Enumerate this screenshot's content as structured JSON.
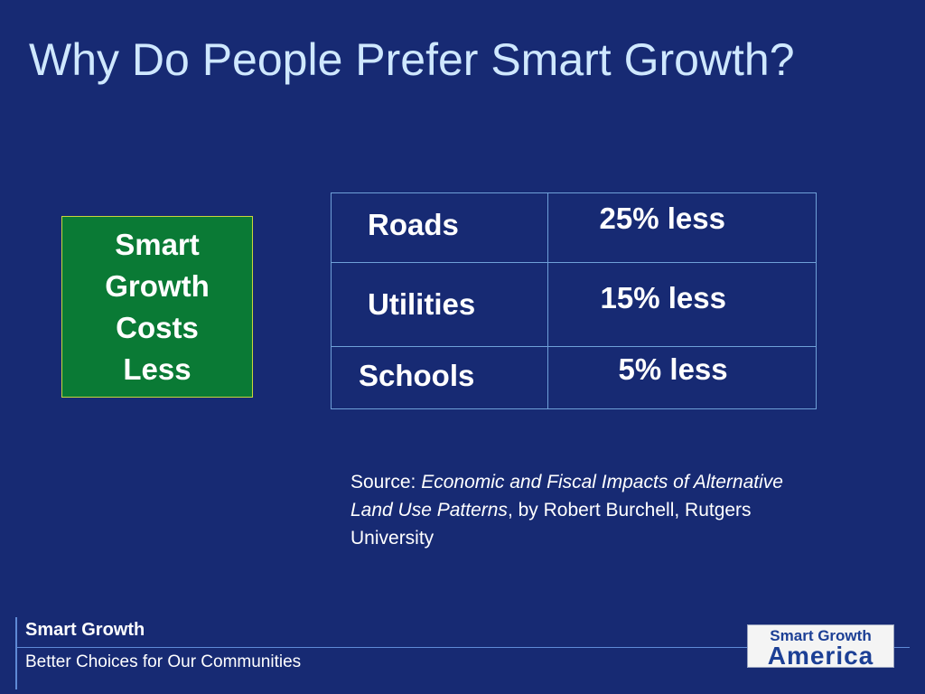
{
  "slide": {
    "title": "Why Do People Prefer Smart Growth?",
    "highlight_box": {
      "lines": [
        "Smart",
        "Growth",
        "Costs",
        "Less"
      ]
    },
    "table": {
      "rows": [
        {
          "category": "Roads",
          "value": "25% less"
        },
        {
          "category": "Utilities",
          "value": "15% less"
        },
        {
          "category": "Schools",
          "value": "5% less"
        }
      ]
    },
    "source": {
      "prefix": "Source: ",
      "title": "Economic and Fiscal Impacts of Alternative Land Use Patterns",
      "suffix": ", by Robert Burchell, Rutgers University"
    },
    "footer": {
      "title": "Smart Growth",
      "subtitle": "Better Choices for Our Communities"
    },
    "logo": {
      "line1": "Smart Growth",
      "line2": "America"
    }
  },
  "colors": {
    "background": "#172a73",
    "title": "#cfe8ff",
    "highlight_box": "#0a7a35",
    "table_border": "#6fa0d8",
    "logo_text": "#1c3f95"
  }
}
